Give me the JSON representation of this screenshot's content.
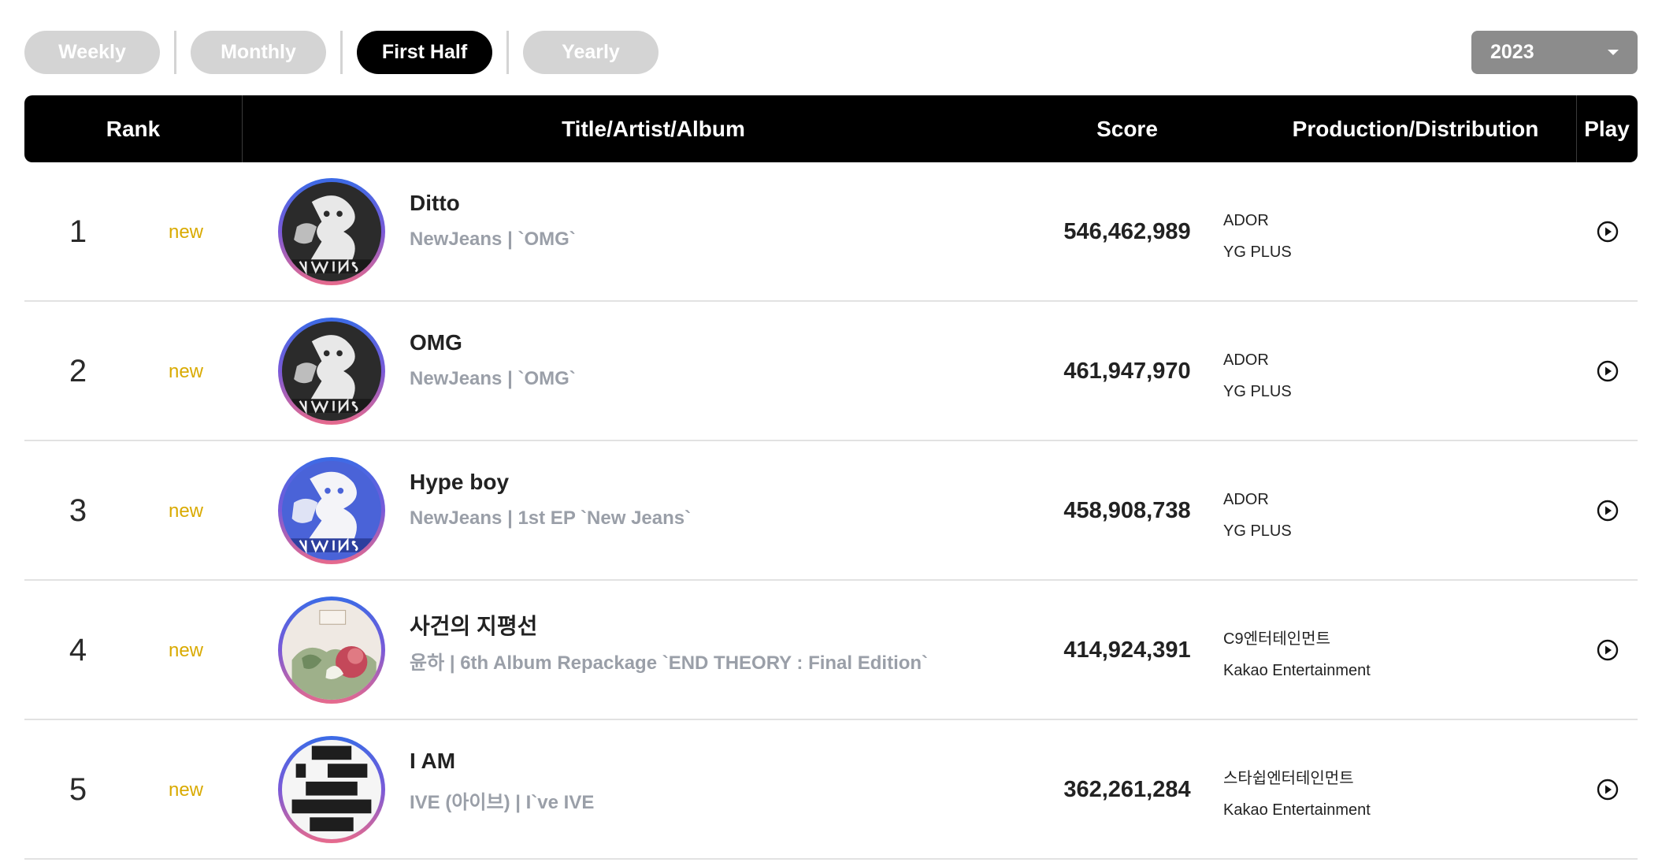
{
  "tabs": [
    {
      "label": "Weekly",
      "active": false
    },
    {
      "label": "Monthly",
      "active": false
    },
    {
      "label": "First Half",
      "active": true
    },
    {
      "label": "Yearly",
      "active": false
    }
  ],
  "year_select": {
    "value": "2023"
  },
  "table": {
    "headers": {
      "rank": "Rank",
      "title": "Title/Artist/Album",
      "score": "Score",
      "production": "Production/Distribution",
      "play": "Play"
    },
    "rows": [
      {
        "rank": "1",
        "badge": "new",
        "title": "Ditto",
        "subtitle": "NewJeans | `OMG`",
        "score": "546,462,989",
        "production": "ADOR",
        "distribution": "YG PLUS",
        "cover_icon": "newjeans-omg-cover"
      },
      {
        "rank": "2",
        "badge": "new",
        "title": "OMG",
        "subtitle": "NewJeans | `OMG`",
        "score": "461,947,970",
        "production": "ADOR",
        "distribution": "YG PLUS",
        "cover_icon": "newjeans-omg-cover"
      },
      {
        "rank": "3",
        "badge": "new",
        "title": "Hype boy",
        "subtitle": "NewJeans | 1st EP `New Jeans`",
        "score": "458,908,738",
        "production": "ADOR",
        "distribution": "YG PLUS",
        "cover_icon": "newjeans-ep-cover"
      },
      {
        "rank": "4",
        "badge": "new",
        "title": "사건의 지평선",
        "subtitle": "윤하 | 6th Album Repackage `END THEORY : Final Edition`",
        "score": "414,924,391",
        "production": "C9엔터테인먼트",
        "distribution": "Kakao Entertainment",
        "cover_icon": "end-theory-cover"
      },
      {
        "rank": "5",
        "badge": "new",
        "title": "I AM",
        "subtitle": "IVE (아이브) | I`ve IVE",
        "score": "362,261,284",
        "production": "스타쉽엔터테인먼트",
        "distribution": "Kakao Entertainment",
        "cover_icon": "ive-cover"
      }
    ]
  },
  "colors": {
    "accent_new": "#d9aa00",
    "header_bg": "#000000",
    "tab_inactive": "#d4d4d4",
    "select_bg": "#8c8c8c"
  }
}
